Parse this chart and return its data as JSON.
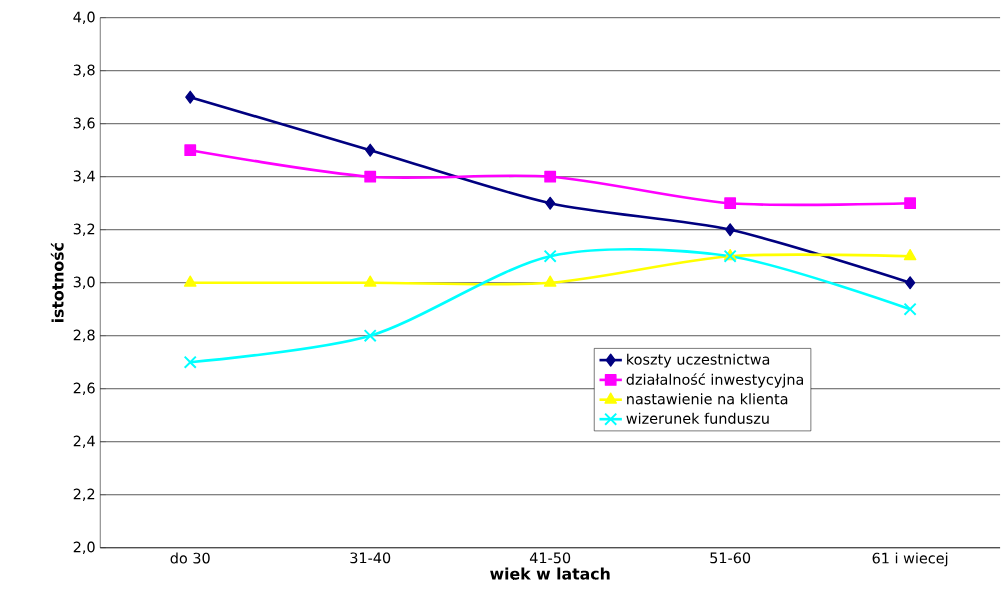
{
  "chart_data": {
    "type": "line",
    "xlabel": "wiek w latach",
    "ylabel": "istotność",
    "categories": [
      "do 30",
      "31-40",
      "41-50",
      "51-60",
      "61 i wiecej"
    ],
    "series": [
      {
        "name": "koszty uczestnictwa",
        "color": "#000080",
        "marker": "diamond",
        "values": [
          3.7,
          3.5,
          3.3,
          3.2,
          3.0
        ]
      },
      {
        "name": "działalność inwestycyjna",
        "color": "#ff00ff",
        "marker": "square",
        "values": [
          3.5,
          3.4,
          3.4,
          3.3,
          3.3
        ]
      },
      {
        "name": "nastawienie na klienta",
        "color": "#ffff00",
        "marker": "triangle",
        "values": [
          3.0,
          3.0,
          3.0,
          3.1,
          3.1
        ]
      },
      {
        "name": "wizerunek funduszu",
        "color": "#00ffff",
        "marker": "cross",
        "values": [
          2.7,
          2.8,
          3.1,
          3.1,
          2.9
        ]
      }
    ],
    "ylim": [
      2.0,
      4.0
    ],
    "yticks": [
      {
        "value": 2.0,
        "label": "2,0"
      },
      {
        "value": 2.2,
        "label": "2,2"
      },
      {
        "value": 2.4,
        "label": "2,4"
      },
      {
        "value": 2.6,
        "label": "2,6"
      },
      {
        "value": 2.8,
        "label": "2,8"
      },
      {
        "value": 3.0,
        "label": "3,0"
      },
      {
        "value": 3.2,
        "label": "3,2"
      },
      {
        "value": 3.4,
        "label": "3,4"
      },
      {
        "value": 3.6,
        "label": "3,6"
      },
      {
        "value": 3.8,
        "label": "3,8"
      },
      {
        "value": 4.0,
        "label": "4,0"
      }
    ],
    "grid": "y",
    "legend": "bottom right"
  }
}
